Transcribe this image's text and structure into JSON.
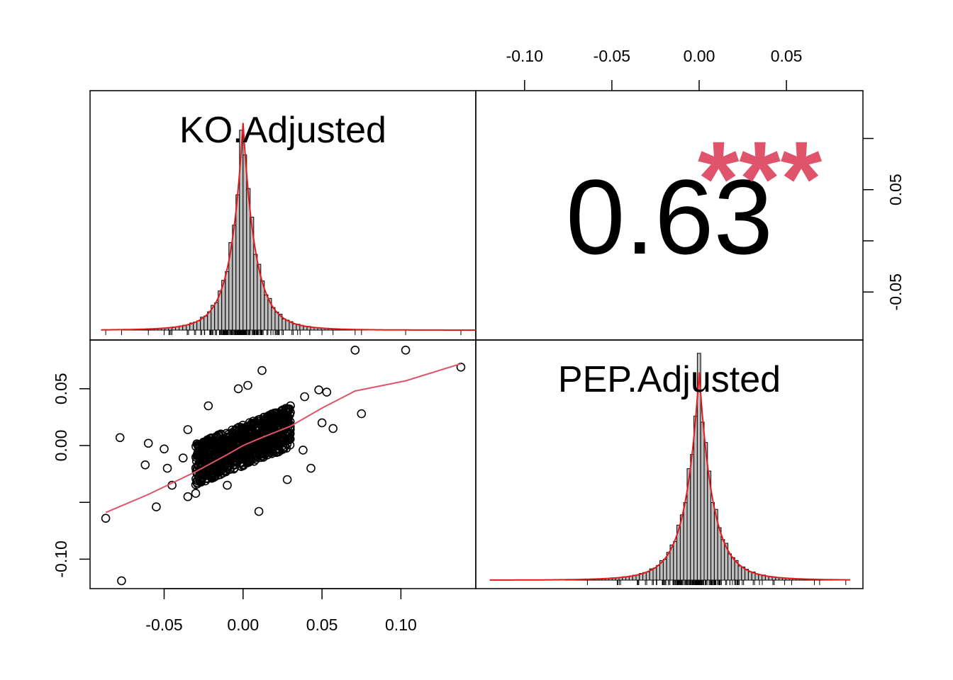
{
  "chart_data": {
    "type": "scatter",
    "title": "",
    "variables": [
      "KO.Adjusted",
      "PEP.Adjusted"
    ],
    "correlation": {
      "value_label": "0.63",
      "significance": "***",
      "color": "#df536b"
    },
    "x_ticks": [
      "-0.05",
      "0.00",
      "0.05",
      "0.10"
    ],
    "x_tick_values": [
      -0.05,
      0.0,
      0.05,
      0.1
    ],
    "top_ticks": [
      "-0.10",
      "-0.05",
      "0.00",
      "0.05"
    ],
    "top_tick_values": [
      -0.1,
      -0.05,
      0.0,
      0.05
    ],
    "left_ticks": [
      "-0.10",
      "0.00",
      "0.05"
    ],
    "left_tick_values": [
      -0.1,
      0.0,
      0.05
    ],
    "right_ticks": [
      "-0.05",
      "0.05"
    ],
    "right_tick_values": [
      -0.05,
      0.05
    ],
    "ko_range": [
      -0.088,
      0.147
    ],
    "pep_range": [
      -0.12,
      0.088
    ],
    "colors": {
      "density": "#e41a1c",
      "smooth": "#df536b",
      "bars": "#bebebe"
    },
    "ko_histogram": {
      "bins": [
        -0.005,
        -0.004,
        -0.003,
        -0.002,
        -0.001,
        0.0,
        0.001,
        0.002,
        0.003,
        0.004,
        0.005,
        0.006
      ],
      "counts": [
        0.65,
        0.76,
        0.86,
        0.93,
        0.97,
        1.0,
        0.96,
        0.9,
        0.8,
        0.7,
        0.6,
        0.5
      ]
    },
    "scatter_points": [
      {
        "x": 0.071,
        "y": 0.084
      },
      {
        "x": 0.103,
        "y": 0.084
      },
      {
        "x": 0.138,
        "y": 0.069
      },
      {
        "x": 0.075,
        "y": 0.028
      },
      {
        "x": 0.057,
        "y": 0.015
      },
      {
        "x": 0.05,
        "y": 0.02
      },
      {
        "x": 0.048,
        "y": 0.049
      },
      {
        "x": 0.053,
        "y": 0.047
      },
      {
        "x": 0.043,
        "y": -0.02
      },
      {
        "x": -0.087,
        "y": -0.064
      },
      {
        "x": -0.077,
        "y": -0.119
      },
      {
        "x": -0.078,
        "y": 0.007
      },
      {
        "x": -0.06,
        "y": 0.002
      },
      {
        "x": -0.062,
        "y": -0.017
      },
      {
        "x": -0.055,
        "y": -0.054
      },
      {
        "x": -0.05,
        "y": -0.003
      },
      {
        "x": -0.048,
        "y": -0.02
      },
      {
        "x": -0.045,
        "y": -0.035
      },
      {
        "x": -0.038,
        "y": -0.011
      },
      {
        "x": -0.035,
        "y": 0.014
      },
      {
        "x": -0.022,
        "y": 0.035
      },
      {
        "x": 0.01,
        "y": -0.058
      },
      {
        "x": -0.003,
        "y": 0.05
      },
      {
        "x": 0.003,
        "y": 0.053
      },
      {
        "x": 0.012,
        "y": 0.066
      },
      {
        "x": -0.035,
        "y": -0.045
      },
      {
        "x": -0.03,
        "y": -0.042
      },
      {
        "x": -0.01,
        "y": -0.035
      },
      {
        "x": 0.028,
        "y": -0.03
      },
      {
        "x": 0.038,
        "y": -0.004
      },
      {
        "x": 0.039,
        "y": 0.043
      },
      {
        "x": 0.03,
        "y": 0.035
      }
    ],
    "smooth_line": {
      "x": [
        -0.087,
        -0.06,
        -0.03,
        -0.01,
        0.0,
        0.01,
        0.03,
        0.05,
        0.071,
        0.103,
        0.138
      ],
      "y": [
        -0.059,
        -0.043,
        -0.023,
        -0.008,
        0.0,
        0.006,
        0.017,
        0.033,
        0.048,
        0.057,
        0.072
      ]
    }
  }
}
